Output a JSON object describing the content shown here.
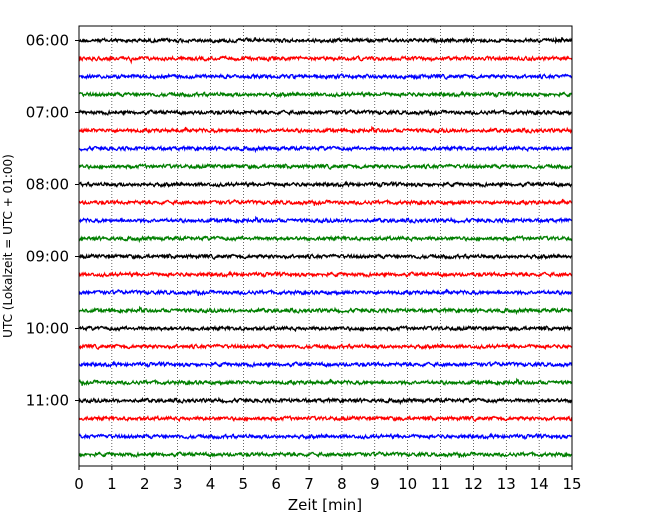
{
  "chart_data": {
    "type": "line",
    "title": "",
    "xlabel": "Zeit  [min]",
    "ylabel": "UTC (Lokalzeit = UTC + 01:00)",
    "xlim": [
      0,
      15
    ],
    "x_ticks": [
      "0",
      "1",
      "2",
      "3",
      "4",
      "5",
      "6",
      "7",
      "8",
      "9",
      "10",
      "11",
      "12",
      "13",
      "14",
      "15"
    ],
    "y_ticks": [
      "06:00",
      "07:00",
      "08:00",
      "09:00",
      "10:00",
      "11:00"
    ],
    "grid": "vertical dotted at each minute",
    "trace_interval_minutes": 15,
    "trace_starts": [
      "06:00",
      "06:15",
      "06:30",
      "06:45",
      "07:00",
      "07:15",
      "07:30",
      "07:45",
      "08:00",
      "08:15",
      "08:30",
      "08:45",
      "09:00",
      "09:15",
      "09:30",
      "09:45",
      "10:00",
      "10:15",
      "10:30",
      "10:45",
      "11:00",
      "11:15",
      "11:30",
      "11:45"
    ],
    "colors": [
      "#000000",
      "#ff0000",
      "#0000ff",
      "#007f00"
    ]
  }
}
